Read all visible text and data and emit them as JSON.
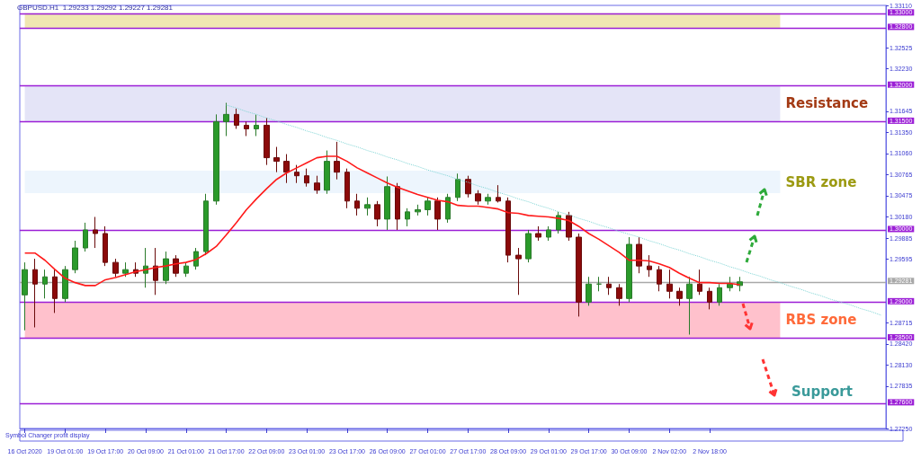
{
  "chart_data": {
    "type": "candlestick",
    "title": "GBPUSD.H1  1.29233 1.29292 1.29227 1.29281",
    "categories": [
      "16 Oct 2020",
      null,
      null,
      null,
      "19 Oct 01:00",
      null,
      null,
      null,
      "19 Oct 17:00",
      null,
      null,
      null,
      "20 Oct 09:00",
      null,
      null,
      null,
      "21 Oct 01:00",
      null,
      null,
      null,
      "21 Oct 17:00",
      null,
      null,
      null,
      "22 Oct 09:00",
      null,
      null,
      null,
      "23 Oct 01:00",
      null,
      null,
      null,
      "23 Oct 17:00",
      null,
      null,
      null,
      "26 Oct 09:00",
      null,
      null,
      null,
      "27 Oct 01:00",
      null,
      null,
      null,
      "27 Oct 17:00",
      null,
      null,
      null,
      "28 Oct 09:00",
      null,
      null,
      null,
      "29 Oct 01:00",
      null,
      null,
      null,
      "29 Oct 17:00",
      null,
      null,
      null,
      "30 Oct 09:00",
      null,
      null,
      null,
      "2 Nov 02:00",
      null,
      null,
      null,
      "2 Nov 18:00",
      null,
      null,
      null,
      null,
      null,
      null,
      null,
      null,
      null,
      null,
      null,
      null,
      null,
      null,
      null,
      null,
      null
    ],
    "ohlc": [
      [
        1.291,
        1.2955,
        1.2861,
        1.2945
      ],
      [
        1.2945,
        1.296,
        1.2865,
        1.2925
      ],
      [
        1.2925,
        1.2945,
        1.2905,
        1.2935
      ],
      [
        1.2935,
        1.2945,
        1.2885,
        1.2905
      ],
      [
        1.2905,
        1.295,
        1.29,
        1.2945
      ],
      [
        1.2945,
        1.2985,
        1.294,
        1.2975
      ],
      [
        1.2975,
        1.301,
        1.297,
        1.3
      ],
      [
        1.3,
        1.3018,
        1.2975,
        1.2995
      ],
      [
        1.2995,
        1.3005,
        1.295,
        1.2955
      ],
      [
        1.2955,
        1.296,
        1.2935,
        1.294
      ],
      [
        1.294,
        1.2955,
        1.2935,
        1.2945
      ],
      [
        1.2945,
        1.2955,
        1.2935,
        1.294
      ],
      [
        1.294,
        1.2975,
        1.292,
        1.295
      ],
      [
        1.295,
        1.2975,
        1.291,
        1.293
      ],
      [
        1.293,
        1.297,
        1.2925,
        1.296
      ],
      [
        1.296,
        1.2965,
        1.2935,
        1.294
      ],
      [
        1.294,
        1.2955,
        1.2935,
        1.295
      ],
      [
        1.295,
        1.2975,
        1.2945,
        1.297
      ],
      [
        1.297,
        1.305,
        1.2965,
        1.304
      ],
      [
        1.304,
        1.316,
        1.3035,
        1.315
      ],
      [
        1.315,
        1.3176,
        1.313,
        1.316
      ],
      [
        1.316,
        1.3168,
        1.314,
        1.3145
      ],
      [
        1.3145,
        1.315,
        1.313,
        1.314
      ],
      [
        1.314,
        1.316,
        1.313,
        1.3145
      ],
      [
        1.3145,
        1.3155,
        1.309,
        1.31
      ],
      [
        1.31,
        1.3115,
        1.308,
        1.3095
      ],
      [
        1.3095,
        1.3105,
        1.3065,
        1.308
      ],
      [
        1.308,
        1.309,
        1.3065,
        1.3075
      ],
      [
        1.3075,
        1.3085,
        1.306,
        1.3065
      ],
      [
        1.3065,
        1.3075,
        1.305,
        1.3055
      ],
      [
        1.3055,
        1.311,
        1.305,
        1.3095
      ],
      [
        1.3095,
        1.3122,
        1.307,
        1.308
      ],
      [
        1.308,
        1.3085,
        1.303,
        1.304
      ],
      [
        1.304,
        1.305,
        1.302,
        1.303
      ],
      [
        1.303,
        1.3045,
        1.302,
        1.3035
      ],
      [
        1.3035,
        1.304,
        1.3005,
        1.3015
      ],
      [
        1.3015,
        1.3074,
        1.3,
        1.306
      ],
      [
        1.306,
        1.3065,
        1.3,
        1.3015
      ],
      [
        1.3015,
        1.303,
        1.3005,
        1.3025
      ],
      [
        1.3025,
        1.3035,
        1.302,
        1.3028
      ],
      [
        1.3028,
        1.3045,
        1.302,
        1.304
      ],
      [
        1.304,
        1.3045,
        1.3,
        1.3015
      ],
      [
        1.3015,
        1.305,
        1.301,
        1.3045
      ],
      [
        1.3045,
        1.3078,
        1.304,
        1.307
      ],
      [
        1.307,
        1.3075,
        1.3045,
        1.305
      ],
      [
        1.305,
        1.3055,
        1.3035,
        1.304
      ],
      [
        1.304,
        1.305,
        1.3035,
        1.3045
      ],
      [
        1.3045,
        1.3062,
        1.3038,
        1.304
      ],
      [
        1.304,
        1.3045,
        1.2955,
        1.2965
      ],
      [
        1.2965,
        1.2975,
        1.291,
        1.296
      ],
      [
        1.296,
        1.3,
        1.2955,
        1.2995
      ],
      [
        1.2995,
        1.3005,
        1.2985,
        1.299
      ],
      [
        1.299,
        1.3005,
        1.2985,
        1.3
      ],
      [
        1.3,
        1.3025,
        1.2995,
        1.302
      ],
      [
        1.302,
        1.3025,
        1.2985,
        1.299
      ],
      [
        1.299,
        1.2995,
        1.288,
        1.29
      ],
      [
        1.29,
        1.2935,
        1.2895,
        1.2925
      ],
      [
        1.2925,
        1.2935,
        1.2915,
        1.2925
      ],
      [
        1.2925,
        1.2935,
        1.291,
        1.292
      ],
      [
        1.292,
        1.2925,
        1.2895,
        1.2905
      ],
      [
        1.2905,
        1.299,
        1.29,
        1.298
      ],
      [
        1.298,
        1.299,
        1.294,
        1.295
      ],
      [
        1.295,
        1.2965,
        1.2935,
        1.2945
      ],
      [
        1.2945,
        1.295,
        1.2915,
        1.2925
      ],
      [
        1.2925,
        1.2945,
        1.2905,
        1.2915
      ],
      [
        1.2915,
        1.292,
        1.2895,
        1.2905
      ],
      [
        1.2905,
        1.2935,
        1.2855,
        1.2925
      ],
      [
        1.2925,
        1.2945,
        1.291,
        1.2915
      ],
      [
        1.2915,
        1.292,
        1.289,
        1.29
      ],
      [
        1.29,
        1.2925,
        1.2895,
        1.292
      ],
      [
        1.292,
        1.2935,
        1.2915,
        1.2925
      ],
      [
        1.2923,
        1.2935,
        1.2915,
        1.29281
      ],
      null,
      null,
      null,
      null,
      null,
      null,
      null,
      null,
      null,
      null,
      null,
      null,
      null,
      null
    ],
    "series": [
      {
        "type": "line",
        "color": "#ff1a1a",
        "values": [
          1.2968,
          1.2968,
          1.2958,
          1.2945,
          1.2933,
          1.2927,
          1.2923,
          1.2923,
          1.2931,
          1.2934,
          1.2938,
          1.2942,
          1.2945,
          1.2948,
          1.295,
          1.2953,
          1.2955,
          1.2959,
          1.2967,
          1.2977,
          1.2993,
          1.301,
          1.3028,
          1.3043,
          1.3057,
          1.307,
          1.3079,
          1.3086,
          1.3093,
          1.31,
          1.3102,
          1.3102,
          1.3095,
          1.3086,
          1.3079,
          1.3072,
          1.3065,
          1.3059,
          1.3054,
          1.3049,
          1.3045,
          1.3041,
          1.3039,
          1.3034,
          1.3033,
          1.3033,
          1.3031,
          1.3029,
          1.3024,
          1.3023,
          1.302,
          1.3019,
          1.3018,
          1.3016,
          1.3013,
          1.3005,
          1.2995,
          1.2987,
          1.2978,
          1.2969,
          1.2958,
          1.2958,
          1.2957,
          1.2953,
          1.2948,
          1.294,
          1.2933,
          1.2927,
          1.2927,
          1.2926,
          1.2926,
          1.2924,
          null,
          null,
          null,
          null,
          null,
          null,
          null,
          null,
          null,
          null,
          null,
          null,
          null,
          null
        ]
      },
      {
        "type": "line",
        "color": "#7fd4d4",
        "line_style": "dotted",
        "values": [
          null,
          null,
          null,
          null,
          null,
          null,
          null,
          null,
          null,
          null,
          null,
          null,
          null,
          null,
          null,
          null,
          null,
          null,
          null,
          null,
          1.3173,
          1.3169,
          1.3164,
          1.316,
          1.3155,
          1.3151,
          1.3146,
          1.3142,
          1.3137,
          1.3133,
          1.3128,
          1.3124,
          1.3119,
          1.3115,
          1.311,
          1.3106,
          1.3101,
          1.3097,
          1.3092,
          1.3088,
          1.3083,
          1.3079,
          1.3075,
          1.307,
          1.3066,
          1.3061,
          1.3057,
          1.3052,
          1.3048,
          1.3043,
          1.3039,
          1.3034,
          1.303,
          1.3025,
          1.3021,
          1.3016,
          1.3012,
          1.3007,
          1.3003,
          1.2998,
          1.2994,
          1.299,
          1.2985,
          1.2981,
          1.2976,
          1.2972,
          1.2967,
          1.2963,
          1.2958,
          1.2954,
          1.2949,
          1.2945,
          1.294,
          1.2936,
          1.2931,
          1.2927,
          1.2922,
          1.2918,
          1.2913,
          1.2909,
          1.2904,
          1.29,
          1.2896,
          1.2891,
          1.2887,
          1.2882
        ]
      }
    ],
    "ylim": [
      1.2725,
      1.3311
    ],
    "yticks": [
      {
        "value": 1.3311,
        "label": "1.33110"
      },
      {
        "value": 1.32525,
        "label": "1.32525"
      },
      {
        "value": 1.3223,
        "label": "1.32230"
      },
      {
        "value": 1.31645,
        "label": "1.31645"
      },
      {
        "value": 1.3135,
        "label": "1.31350"
      },
      {
        "value": 1.3106,
        "label": "1.31060"
      },
      {
        "value": 1.30765,
        "label": "1.30765"
      },
      {
        "value": 1.30475,
        "label": "1.30475"
      },
      {
        "value": 1.3018,
        "label": "1.30180"
      },
      {
        "value": 1.29885,
        "label": "1.29885"
      },
      {
        "value": 1.29595,
        "label": "1.29595"
      },
      {
        "value": 1.28715,
        "label": "1.28715"
      },
      {
        "value": 1.2842,
        "label": "1.28420"
      },
      {
        "value": 1.2813,
        "label": "1.28130"
      },
      {
        "value": 1.27835,
        "label": "1.27835"
      },
      {
        "value": 1.2725,
        "label": "1.27250"
      }
    ],
    "ref_lines": [
      {
        "axis": "y",
        "value": 1.33,
        "label": "1.33000",
        "color": "#9b1ed6"
      },
      {
        "axis": "y",
        "value": 1.328,
        "label": "1.32800",
        "color": "#9b1ed6"
      },
      {
        "axis": "y",
        "value": 1.32,
        "label": "1.32000",
        "color": "#9b1ed6"
      },
      {
        "axis": "y",
        "value": 1.315,
        "label": "1.31500",
        "color": "#9b1ed6"
      },
      {
        "axis": "y",
        "value": 1.3,
        "label": "1.30000",
        "color": "#9b1ed6"
      },
      {
        "axis": "y",
        "value": 1.29281,
        "label": "1.29281",
        "color": "#a8a8a8"
      },
      {
        "axis": "y",
        "value": 1.29,
        "label": "1.29000",
        "color": "#9b1ed6"
      },
      {
        "axis": "y",
        "value": 1.285,
        "label": "1.28500",
        "color": "#9b1ed6"
      },
      {
        "axis": "y",
        "value": 1.276,
        "label": "1.27600",
        "color": "#9b1ed6"
      }
    ],
    "bands": [
      {
        "axis": "y",
        "from": 1.328,
        "to": 1.33,
        "color": "#f0e7b2"
      },
      {
        "axis": "y",
        "from": 1.315,
        "to": 1.32,
        "label": "Resistance",
        "color": "#e4e4f7"
      },
      {
        "axis": "y",
        "from": 1.3051,
        "to": 1.3082,
        "label": "SBR zone",
        "color": "#edf5fd"
      },
      {
        "axis": "y",
        "from": 1.285,
        "to": 1.29,
        "label": "RBS zone",
        "color": "#ffc1cc"
      }
    ],
    "annotations": [
      "Symbol Changer profit display",
      "Support"
    ]
  }
}
